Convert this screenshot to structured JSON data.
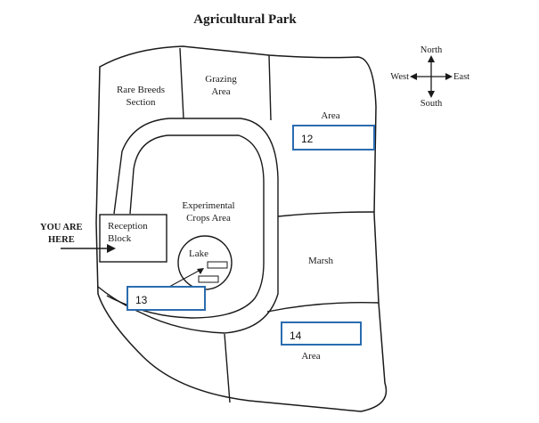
{
  "title": "Agricultural Park",
  "compass": {
    "north": "North",
    "south": "South",
    "east": "East",
    "west": "West"
  },
  "labels": {
    "rare_breeds_line1": "Rare Breeds",
    "rare_breeds_line2": "Section",
    "grazing_line1": "Grazing",
    "grazing_line2": "Area",
    "area_ne": "Area",
    "experimental_line1": "Experimental",
    "experimental_line2": "Crops Area",
    "reception_line1": "Reception",
    "reception_line2": "Block",
    "you_are_line1": "YOU ARE",
    "you_are_line2": "HERE",
    "lake": "Lake",
    "marsh": "Marsh",
    "area_se": "Area"
  },
  "answer_boxes": {
    "q12": "12",
    "q13": "13",
    "q14": "14"
  },
  "colors": {
    "answer_border": "#2b6cb0",
    "lines": "#1a1a1a"
  }
}
